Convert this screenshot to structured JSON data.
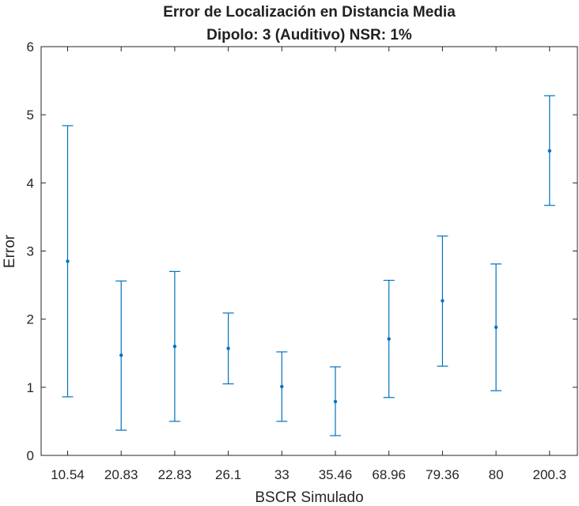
{
  "chart_data": {
    "type": "scatter",
    "title": "Error de Localización en Distancia Media",
    "subtitle": "Dipolo: 3 (Auditivo) NSR: 1%",
    "xlabel": "BSCR Simulado",
    "ylabel": "Error",
    "categories": [
      "10.54",
      "20.83",
      "22.83",
      "26.1",
      "33",
      "35.46",
      "68.96",
      "79.36",
      "80",
      "200.3"
    ],
    "series": [
      {
        "values": [
          2.85,
          1.47,
          1.6,
          1.57,
          1.01,
          0.79,
          1.71,
          2.27,
          1.88,
          4.47
        ],
        "lower": [
          0.86,
          0.37,
          0.5,
          1.05,
          0.5,
          0.29,
          0.85,
          1.31,
          0.95,
          3.67
        ],
        "upper": [
          4.84,
          2.56,
          2.7,
          2.09,
          1.52,
          1.3,
          2.57,
          3.22,
          2.81,
          5.28
        ]
      }
    ],
    "ylim": [
      0,
      6
    ],
    "yticks": [
      0,
      1,
      2,
      3,
      4,
      5,
      6
    ],
    "grid": false,
    "color": "#0072BD"
  }
}
